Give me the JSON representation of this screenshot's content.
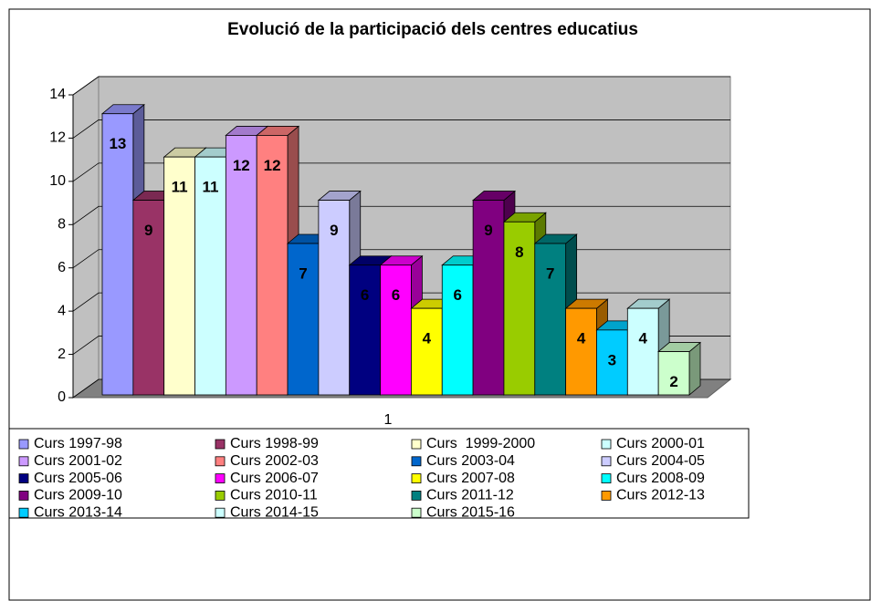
{
  "chart_data": {
    "type": "bar3d",
    "title": "Evolució de la participació dels centres educatius",
    "categories": [
      "1"
    ],
    "series": [
      {
        "name": "Curs 1997-98",
        "color": "#9999ff",
        "values": [
          13
        ]
      },
      {
        "name": "Curs 1998-99",
        "color": "#993366",
        "values": [
          9
        ]
      },
      {
        "name": "Curs  1999-2000",
        "color": "#ffffcc",
        "values": [
          11
        ]
      },
      {
        "name": "Curs 2000-01",
        "color": "#ccffff",
        "values": [
          11
        ]
      },
      {
        "name": "Curs 2001-02",
        "color": "#cc99ff",
        "values": [
          12
        ]
      },
      {
        "name": "Curs 2002-03",
        "color": "#ff8080",
        "values": [
          12
        ]
      },
      {
        "name": "Curs 2003-04",
        "color": "#0066cc",
        "values": [
          7
        ]
      },
      {
        "name": "Curs 2004-05",
        "color": "#ccccff",
        "values": [
          9
        ]
      },
      {
        "name": "Curs 2005-06",
        "color": "#000080",
        "values": [
          6
        ]
      },
      {
        "name": "Curs 2006-07",
        "color": "#ff00ff",
        "values": [
          6
        ]
      },
      {
        "name": "Curs 2007-08",
        "color": "#ffff00",
        "values": [
          4
        ]
      },
      {
        "name": "Curs 2008-09",
        "color": "#00ffff",
        "values": [
          6
        ]
      },
      {
        "name": "Curs 2009-10",
        "color": "#800080",
        "values": [
          9
        ]
      },
      {
        "name": "Curs 2010-11",
        "color": "#99cc00",
        "values": [
          8
        ]
      },
      {
        "name": "Curs 2011-12",
        "color": "#008080",
        "values": [
          7
        ]
      },
      {
        "name": "Curs 2012-13",
        "color": "#ff9900",
        "values": [
          4
        ]
      },
      {
        "name": "Curs 2013-14",
        "color": "#00ccff",
        "values": [
          3
        ]
      },
      {
        "name": "Curs 2014-15",
        "color": "#ccffff",
        "values": [
          4
        ]
      },
      {
        "name": "Curs 2015-16",
        "color": "#ccffcc",
        "values": [
          2
        ]
      }
    ],
    "ylim": [
      0,
      14
    ],
    "yticks": [
      0,
      2,
      4,
      6,
      8,
      10,
      12,
      14
    ],
    "grid": true,
    "legend": "bottom"
  }
}
